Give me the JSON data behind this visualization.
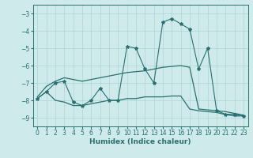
{
  "xlabel": "Humidex (Indice chaleur)",
  "xlim": [
    -0.5,
    23.5
  ],
  "ylim": [
    -9.5,
    -2.5
  ],
  "xticks": [
    0,
    1,
    2,
    3,
    4,
    5,
    6,
    7,
    8,
    9,
    10,
    11,
    12,
    13,
    14,
    15,
    16,
    17,
    18,
    19,
    20,
    21,
    22,
    23
  ],
  "yticks": [
    -9,
    -8,
    -7,
    -6,
    -5,
    -4,
    -3
  ],
  "bg_color": "#ceeaea",
  "line_color": "#2a7070",
  "grid_color": "#aed4d4",
  "y_spiky": [
    -7.9,
    -7.5,
    -7.0,
    -6.9,
    -8.1,
    -8.3,
    -8.0,
    -7.3,
    -8.0,
    -8.0,
    -4.9,
    -5.0,
    -6.2,
    -7.0,
    -3.5,
    -3.3,
    -3.6,
    -3.9,
    -6.2,
    -5.0,
    -8.6,
    -8.8,
    -8.8,
    -8.9
  ],
  "y_smooth_upper": [
    -7.8,
    -7.2,
    -6.9,
    -6.7,
    -6.8,
    -6.9,
    -6.8,
    -6.7,
    -6.6,
    -6.5,
    -6.4,
    -6.35,
    -6.3,
    -6.2,
    -6.1,
    -6.05,
    -6.0,
    -6.1,
    -8.5,
    -8.55,
    -8.6,
    -8.65,
    -8.75,
    -8.85
  ],
  "y_lower": [
    -7.9,
    -7.5,
    -8.0,
    -8.1,
    -8.3,
    -8.3,
    -8.2,
    -8.1,
    -8.0,
    -8.0,
    -7.9,
    -7.9,
    -7.8,
    -7.8,
    -7.8,
    -7.75,
    -7.75,
    -8.5,
    -8.6,
    -8.65,
    -8.7,
    -8.82,
    -8.9,
    -8.9
  ]
}
